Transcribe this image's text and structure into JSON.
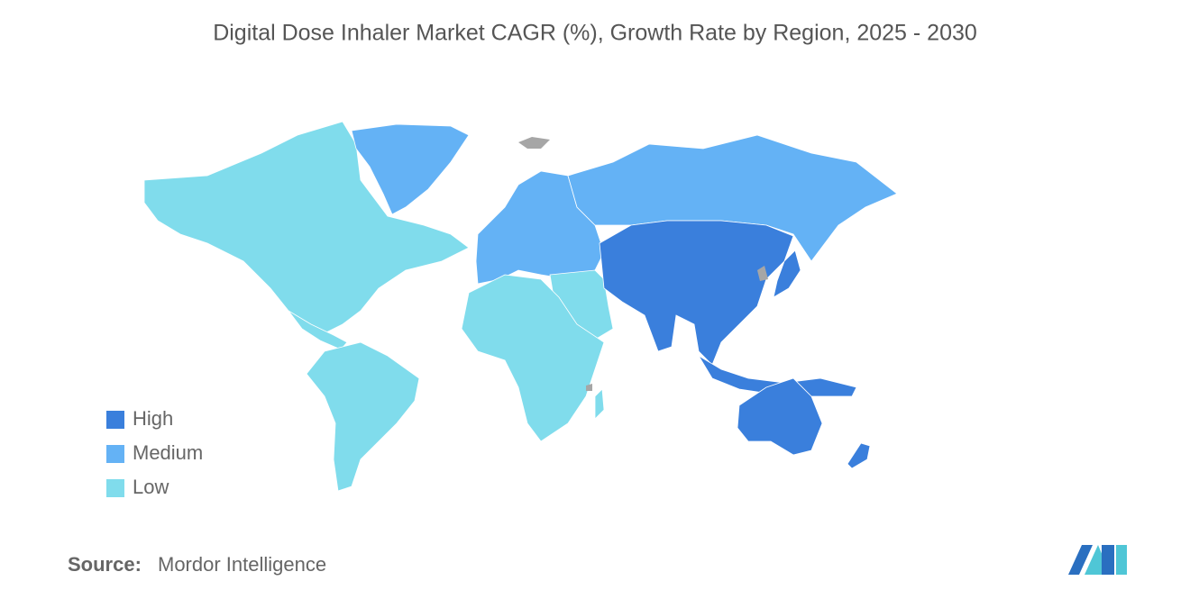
{
  "title": "Digital Dose Inhaler Market CAGR (%), Growth Rate by Region, 2025 - 2030",
  "legend": [
    {
      "label": "High",
      "color": "#3a7fdc"
    },
    {
      "label": "Medium",
      "color": "#64b2f5"
    },
    {
      "label": "Low",
      "color": "#80dcec"
    }
  ],
  "source": {
    "label": "Source:",
    "text": "Mordor Intelligence"
  }
}
